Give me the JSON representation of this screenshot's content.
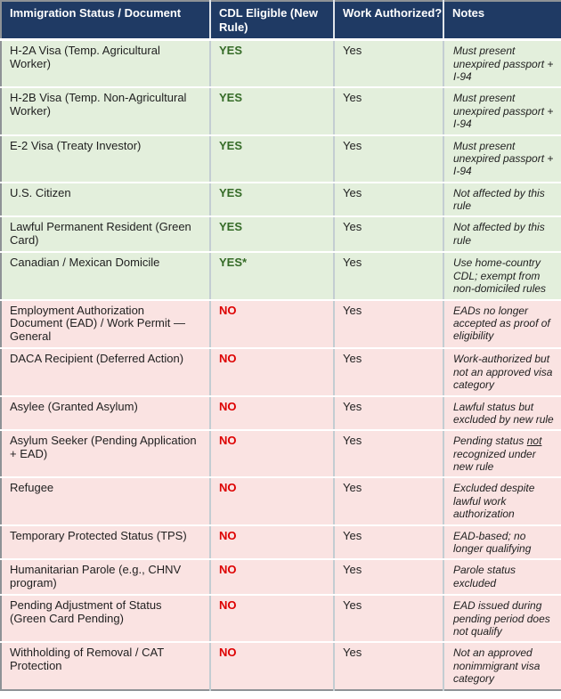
{
  "page_title": "Immigration Status vs CDL Eligibility Table",
  "colors": {
    "header_bg": "#1F3A64",
    "header_text": "#FFFFFF",
    "green_row_bg": "#E3EFDC",
    "red_row_bg": "#FAE3E2",
    "yes_text": "#356B27",
    "no_text": "#DD0000",
    "body_text": "#1F1F1F"
  },
  "table": {
    "headers": [
      "Immigration Status / Document",
      "CDL Eligible (New Rule)",
      "Work Authorized?",
      "Notes"
    ],
    "rows": [
      {
        "status": "H-2A Visa (Temp. Agricultural Worker)",
        "cdl_eligible": "YES",
        "work_authorized": "Yes",
        "notes": "Must present unexpired passport + I-94",
        "tone": "green"
      },
      {
        "status": "H-2B Visa (Temp. Non-Agricultural Worker)",
        "cdl_eligible": "YES",
        "work_authorized": "Yes",
        "notes": "Must present unexpired passport + I-94",
        "tone": "green"
      },
      {
        "status": "E-2 Visa (Treaty Investor)",
        "cdl_eligible": "YES",
        "work_authorized": "Yes",
        "notes": "Must present unexpired passport + I-94",
        "tone": "green"
      },
      {
        "status": "U.S. Citizen",
        "cdl_eligible": "YES",
        "work_authorized": "Yes",
        "notes": "Not affected by this rule",
        "tone": "green"
      },
      {
        "status": "Lawful Permanent Resident (Green Card)",
        "cdl_eligible": "YES",
        "work_authorized": "Yes",
        "notes": "Not affected by this rule",
        "tone": "green"
      },
      {
        "status": "Canadian / Mexican Domicile",
        "cdl_eligible": "YES*",
        "work_authorized": "Yes",
        "notes": "Use home-country CDL; exempt from non-domiciled rules",
        "tone": "green"
      },
      {
        "status": "Employment Authorization Document (EAD) / Work Permit — General",
        "cdl_eligible": "NO",
        "work_authorized": "Yes",
        "notes": "EADs no longer accepted as proof of eligibility",
        "tone": "red"
      },
      {
        "status": "DACA Recipient (Deferred Action)",
        "cdl_eligible": "NO",
        "work_authorized": "Yes",
        "notes": "Work-authorized but not an approved visa category",
        "tone": "red"
      },
      {
        "status": "Asylee (Granted Asylum)",
        "cdl_eligible": "NO",
        "work_authorized": "Yes",
        "notes": "Lawful status but excluded by new rule",
        "tone": "red"
      },
      {
        "status": "Asylum Seeker (Pending Application + EAD)",
        "cdl_eligible": "NO",
        "work_authorized": "Yes",
        "notes": "Pending status not recognized under new rule",
        "notes_underline": "not",
        "tone": "red"
      },
      {
        "status": "Refugee",
        "cdl_eligible": "NO",
        "work_authorized": "Yes",
        "notes": "Excluded despite lawful work authorization",
        "tone": "red"
      },
      {
        "status": "Temporary Protected Status (TPS)",
        "cdl_eligible": "NO",
        "work_authorized": "Yes",
        "notes": "EAD-based; no longer qualifying",
        "tone": "red"
      },
      {
        "status": "Humanitarian Parole (e.g., CHNV program)",
        "cdl_eligible": "NO",
        "work_authorized": "Yes",
        "notes": "Parole status excluded",
        "tone": "red"
      },
      {
        "status": "Pending Adjustment of Status (Green Card Pending)",
        "cdl_eligible": "NO",
        "work_authorized": "Yes",
        "notes": "EAD issued during pending period does not qualify",
        "tone": "red"
      },
      {
        "status": "Withholding of Removal / CAT Protection",
        "cdl_eligible": "NO",
        "work_authorized": "Yes",
        "notes": "Not an approved nonimmigrant visa category",
        "tone": "red"
      }
    ]
  }
}
